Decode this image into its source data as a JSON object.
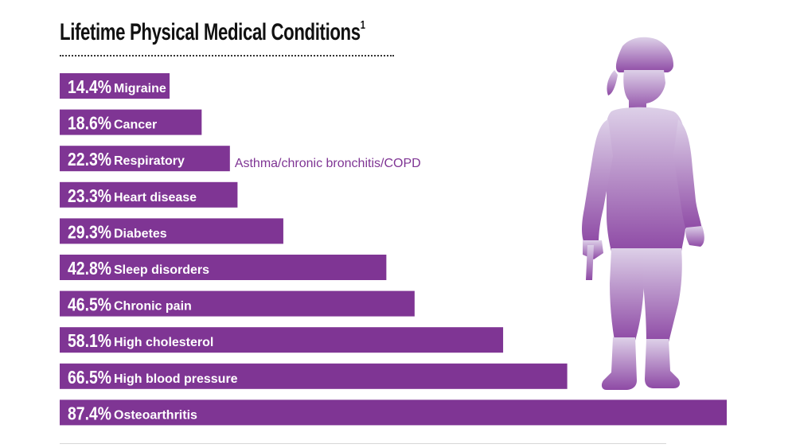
{
  "chart_data": {
    "type": "bar",
    "orientation": "horizontal",
    "title": "Lifetime Physical Medical Conditions",
    "title_superscript": "1",
    "categories": [
      "Migraine",
      "Cancer",
      "Respiratory",
      "Heart disease",
      "Diabetes",
      "Sleep disorders",
      "Chronic pain",
      "High cholesterol",
      "High blood pressure",
      "Osteoarthritis"
    ],
    "values": [
      14.4,
      18.6,
      22.3,
      23.3,
      29.3,
      42.8,
      46.5,
      58.1,
      66.5,
      87.4
    ],
    "value_labels": [
      "14.4%",
      "18.6%",
      "22.3%",
      "23.3%",
      "29.3%",
      "42.8%",
      "46.5%",
      "58.1%",
      "66.5%",
      "87.4%"
    ],
    "annotations": [
      {
        "category": "Respiratory",
        "text": "Asthma/chronic bronchitis/COPD"
      }
    ],
    "xlim": [
      0,
      87.4
    ],
    "grid": false,
    "legend": "none"
  },
  "colors": {
    "bar": "#7f3594",
    "bar_text": "#ffffff",
    "annotation": "#7f3594",
    "silhouette_top": "#ddd0e8",
    "silhouette_bottom": "#8e4aa5"
  },
  "decoration": {
    "silhouette": "soldier-silhouette-icon"
  }
}
